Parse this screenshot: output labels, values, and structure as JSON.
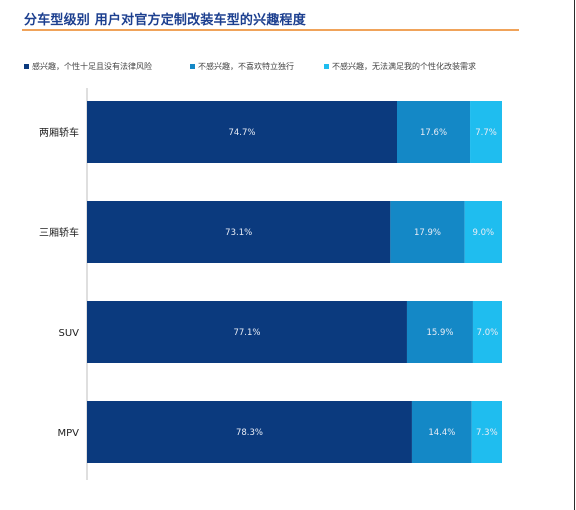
{
  "title": "分车型级别 用户对官方定制改装车型的兴趣程度",
  "colors": {
    "title": "#1c3f8f",
    "underline": "#f0a35a"
  },
  "chart_data": {
    "type": "bar",
    "orientation": "horizontal",
    "stacked": true,
    "categories": [
      "两厢轿车",
      "三厢轿车",
      "SUV",
      "MPV"
    ],
    "series": [
      {
        "name": "感兴趣，个性十足且没有法律风险",
        "color": "#0b3a7e",
        "values": [
          74.7,
          73.1,
          77.1,
          78.3
        ],
        "labels": [
          "74.7%",
          "73.1%",
          "77.1%",
          "78.3%"
        ]
      },
      {
        "name": "不感兴趣，不喜欢特立独行",
        "color": "#1488c6",
        "values": [
          17.6,
          17.9,
          15.9,
          14.4
        ],
        "labels": [
          "17.6%",
          "17.9%",
          "15.9%",
          "14.4%"
        ]
      },
      {
        "name": "不感兴趣，无法满足我的个性化改装需求",
        "color": "#1fbdef",
        "values": [
          7.7,
          9.0,
          7.0,
          7.3
        ],
        "labels": [
          "7.7%",
          "9.0%",
          "7.0%",
          "7.3%"
        ]
      }
    ],
    "xlim": [
      0,
      100
    ],
    "legend_position": "top",
    "grid": false
  }
}
